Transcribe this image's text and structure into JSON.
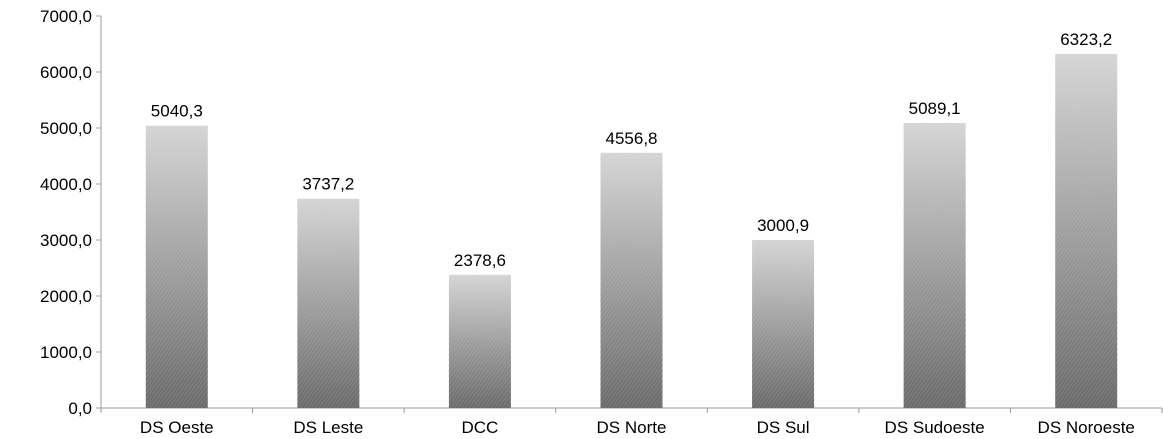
{
  "chart_data": {
    "type": "bar",
    "title": "",
    "xlabel": "",
    "ylabel": "",
    "categories": [
      "DS Oeste",
      "DS Leste",
      "DCC",
      "DS Norte",
      "DS Sul",
      "DS Sudoeste",
      "DS Noroeste"
    ],
    "values": [
      5040.3,
      3737.2,
      2378.6,
      4556.8,
      3000.9,
      5089.1,
      6323.2
    ],
    "value_labels": [
      "5040,3",
      "3737,2",
      "2378,6",
      "4556,8",
      "3000,9",
      "5089,1",
      "6323,2"
    ],
    "ylim": [
      0,
      7000
    ],
    "y_ticks": [
      0,
      1000,
      2000,
      3000,
      4000,
      5000,
      6000,
      7000
    ],
    "y_tick_labels": [
      "0,0",
      "1000,0",
      "2000,0",
      "3000,0",
      "4000,0",
      "5000,0",
      "6000,0",
      "7000,0"
    ],
    "grid": false,
    "legend": "none",
    "colors": {
      "bar_light": "#d4d4d4",
      "bar_dark": "#6a6a6a",
      "axis": "#999999"
    }
  }
}
